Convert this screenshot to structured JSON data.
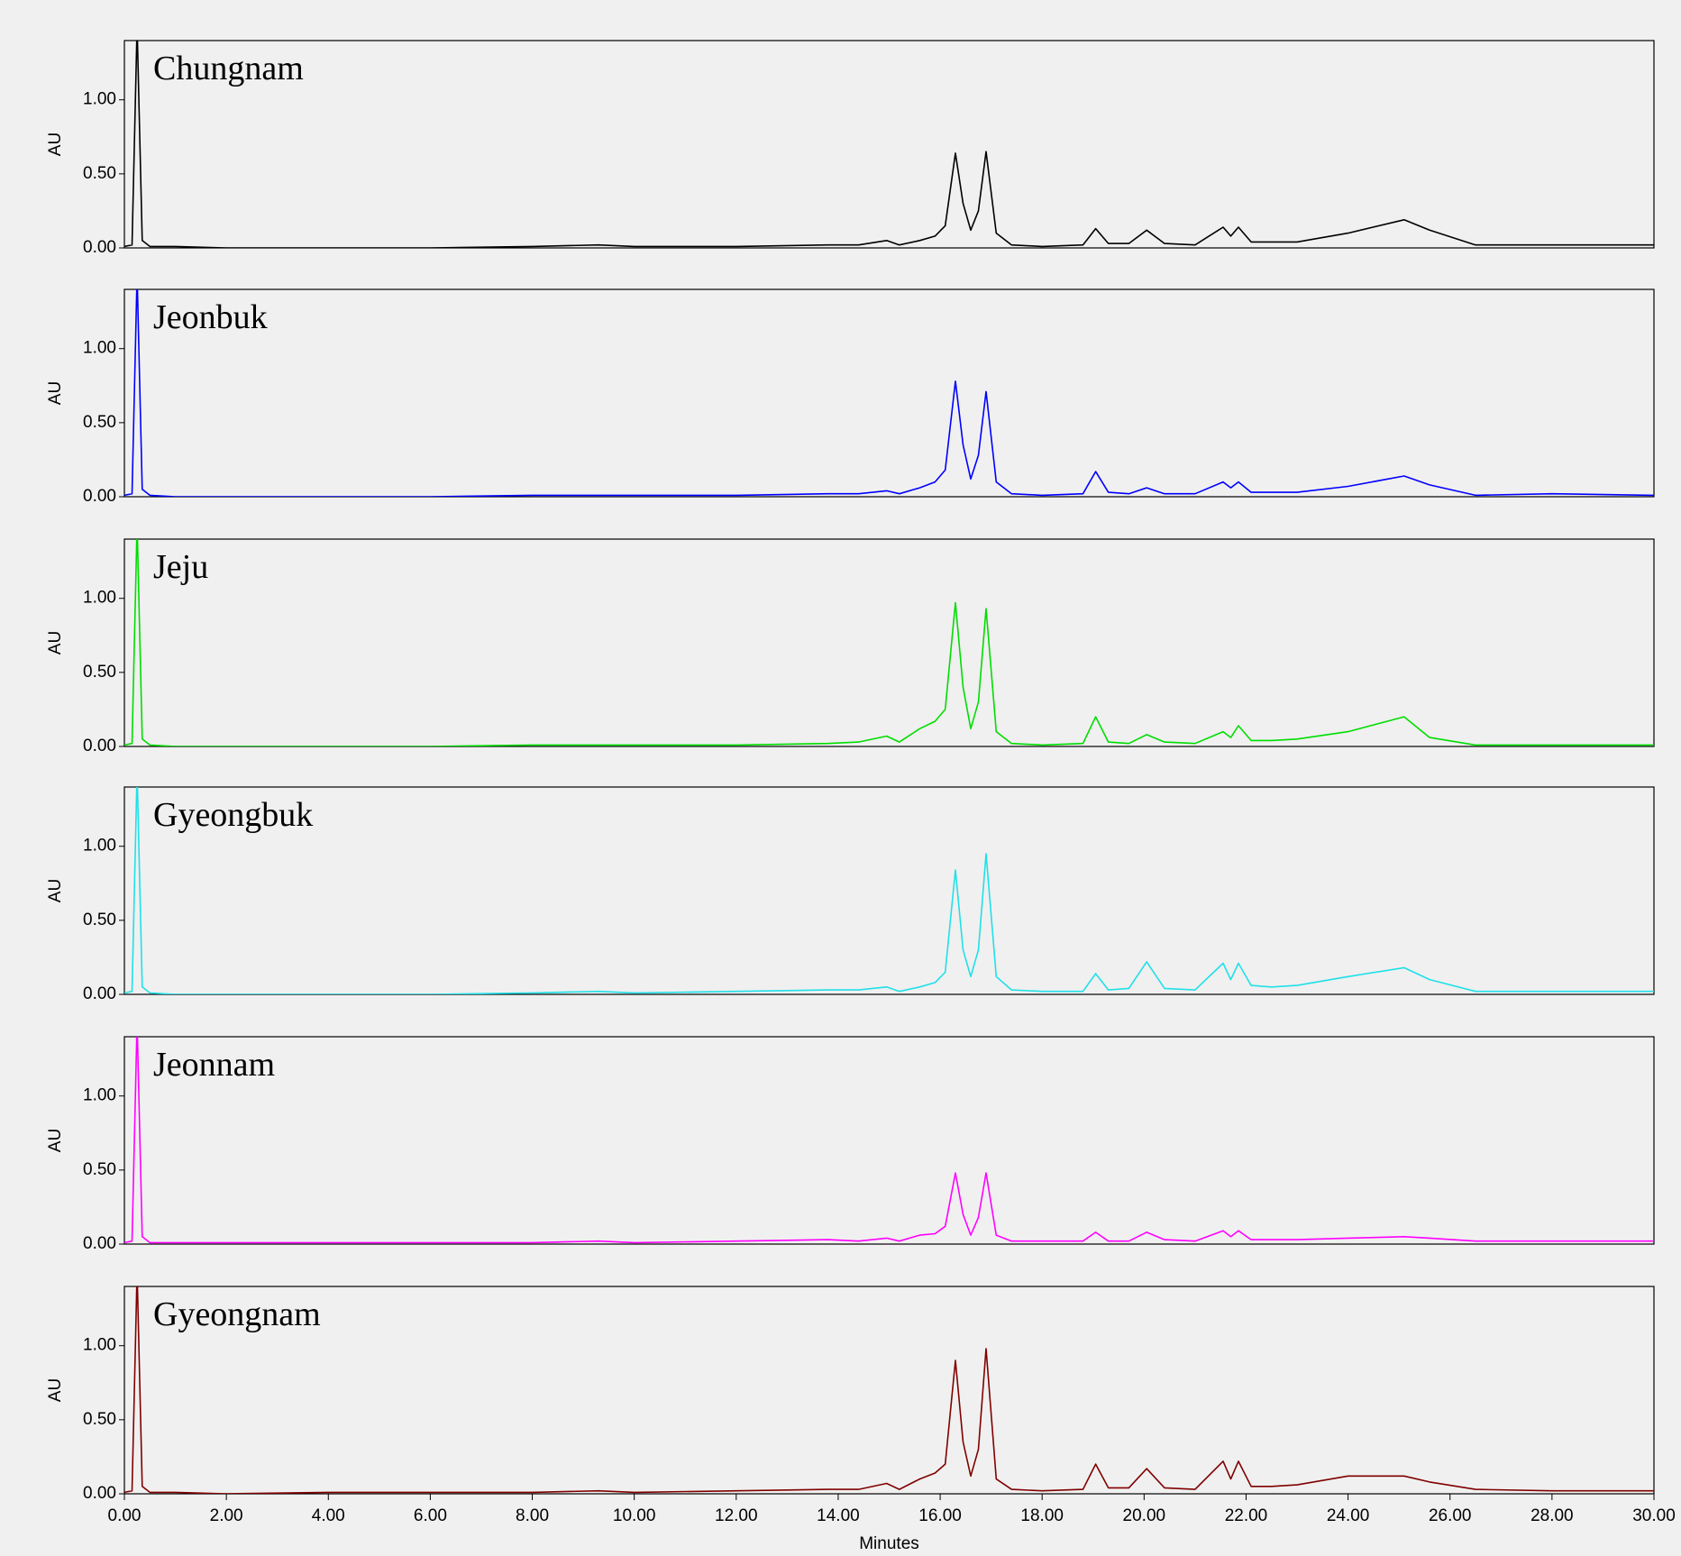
{
  "chart_data": [
    {
      "type": "line",
      "title": "Chungnam",
      "ylabel": "AU",
      "color": "#000000",
      "x": [
        0,
        0.15,
        0.25,
        0.35,
        0.5,
        1,
        2,
        4,
        6,
        8,
        9.3,
        10,
        12,
        13.8,
        14.4,
        14.95,
        15.2,
        15.6,
        15.9,
        16.1,
        16.3,
        16.45,
        16.6,
        16.75,
        16.9,
        17.1,
        17.4,
        18,
        18.8,
        19.05,
        19.3,
        19.7,
        20.05,
        20.4,
        21,
        21.55,
        21.7,
        21.85,
        22.1,
        22.5,
        23,
        24,
        25.1,
        25.6,
        26.5,
        28,
        30
      ],
      "values": [
        0.01,
        0.02,
        1.5,
        0.05,
        0.01,
        0.01,
        0,
        0,
        0,
        0.01,
        0.02,
        0.01,
        0.01,
        0.02,
        0.02,
        0.05,
        0.02,
        0.05,
        0.08,
        0.15,
        0.64,
        0.3,
        0.12,
        0.25,
        0.65,
        0.1,
        0.02,
        0.01,
        0.02,
        0.13,
        0.03,
        0.03,
        0.12,
        0.03,
        0.02,
        0.14,
        0.08,
        0.14,
        0.04,
        0.04,
        0.04,
        0.1,
        0.19,
        0.12,
        0.02,
        0.02,
        0.02
      ],
      "xlim": [
        0,
        30
      ],
      "ylim": [
        0,
        1.4
      ],
      "yticks": [
        {
          "value": 0,
          "label": "0.00"
        },
        {
          "value": 0.5,
          "label": "0.50"
        },
        {
          "value": 1,
          "label": "1.00"
        }
      ]
    },
    {
      "type": "line",
      "title": "Jeonbuk",
      "ylabel": "AU",
      "color": "#0000ff",
      "x": [
        0,
        0.15,
        0.25,
        0.35,
        0.5,
        1,
        2,
        4,
        6,
        8,
        9.3,
        10,
        12,
        13.8,
        14.4,
        14.95,
        15.2,
        15.6,
        15.9,
        16.1,
        16.3,
        16.45,
        16.6,
        16.75,
        16.9,
        17.1,
        17.4,
        18,
        18.8,
        19.05,
        19.3,
        19.7,
        20.05,
        20.4,
        21,
        21.55,
        21.7,
        21.85,
        22.1,
        22.5,
        23,
        24,
        25.1,
        25.6,
        26.5,
        28,
        30
      ],
      "values": [
        0.01,
        0.02,
        1.5,
        0.05,
        0.01,
        0,
        0,
        0,
        0,
        0.01,
        0.01,
        0.01,
        0.01,
        0.02,
        0.02,
        0.04,
        0.02,
        0.06,
        0.1,
        0.18,
        0.78,
        0.35,
        0.12,
        0.28,
        0.71,
        0.1,
        0.02,
        0.01,
        0.02,
        0.17,
        0.03,
        0.02,
        0.06,
        0.02,
        0.02,
        0.1,
        0.06,
        0.1,
        0.03,
        0.03,
        0.03,
        0.07,
        0.14,
        0.08,
        0.01,
        0.02,
        0.01
      ],
      "xlim": [
        0,
        30
      ],
      "ylim": [
        0,
        1.4
      ],
      "yticks": [
        {
          "value": 0,
          "label": "0.00"
        },
        {
          "value": 0.5,
          "label": "0.50"
        },
        {
          "value": 1,
          "label": "1.00"
        }
      ]
    },
    {
      "type": "line",
      "title": "Jeju",
      "ylabel": "AU",
      "color": "#00dd00",
      "x": [
        0,
        0.15,
        0.25,
        0.35,
        0.5,
        1,
        2,
        4,
        6,
        8,
        9.3,
        10,
        12,
        13.8,
        14.4,
        14.95,
        15.2,
        15.6,
        15.9,
        16.1,
        16.3,
        16.45,
        16.6,
        16.75,
        16.9,
        17.1,
        17.4,
        18,
        18.8,
        19.05,
        19.3,
        19.7,
        20.05,
        20.4,
        21,
        21.55,
        21.7,
        21.85,
        22.1,
        22.5,
        23,
        24,
        25.1,
        25.6,
        26.5,
        28,
        30
      ],
      "values": [
        0.01,
        0.02,
        1.5,
        0.05,
        0.01,
        0,
        0,
        0,
        0,
        0.01,
        0.01,
        0.01,
        0.01,
        0.02,
        0.03,
        0.07,
        0.03,
        0.12,
        0.17,
        0.25,
        0.97,
        0.4,
        0.12,
        0.3,
        0.93,
        0.1,
        0.02,
        0.01,
        0.02,
        0.2,
        0.03,
        0.02,
        0.08,
        0.03,
        0.02,
        0.1,
        0.06,
        0.14,
        0.04,
        0.04,
        0.05,
        0.1,
        0.2,
        0.06,
        0.01,
        0.01,
        0.01
      ],
      "xlim": [
        0,
        30
      ],
      "ylim": [
        0,
        1.4
      ],
      "yticks": [
        {
          "value": 0,
          "label": "0.00"
        },
        {
          "value": 0.5,
          "label": "0.50"
        },
        {
          "value": 1,
          "label": "1.00"
        }
      ]
    },
    {
      "type": "line",
      "title": "Gyeongbuk",
      "ylabel": "AU",
      "color": "#20e0e8",
      "x": [
        0,
        0.15,
        0.25,
        0.35,
        0.5,
        1,
        2,
        4,
        6,
        8,
        9.3,
        10,
        12,
        13.8,
        14.4,
        14.95,
        15.2,
        15.6,
        15.9,
        16.1,
        16.3,
        16.45,
        16.6,
        16.75,
        16.9,
        17.1,
        17.4,
        18,
        18.8,
        19.05,
        19.3,
        19.7,
        20.05,
        20.4,
        21,
        21.55,
        21.7,
        21.85,
        22.1,
        22.5,
        23,
        24,
        25.1,
        25.6,
        26.5,
        28,
        30
      ],
      "values": [
        0.01,
        0.02,
        1.5,
        0.05,
        0.01,
        0,
        0,
        0,
        0,
        0.01,
        0.02,
        0.01,
        0.02,
        0.03,
        0.03,
        0.05,
        0.02,
        0.05,
        0.08,
        0.15,
        0.84,
        0.3,
        0.12,
        0.3,
        0.95,
        0.12,
        0.03,
        0.02,
        0.02,
        0.14,
        0.03,
        0.04,
        0.22,
        0.04,
        0.03,
        0.21,
        0.1,
        0.21,
        0.06,
        0.05,
        0.06,
        0.12,
        0.18,
        0.1,
        0.02,
        0.02,
        0.02
      ],
      "xlim": [
        0,
        30
      ],
      "ylim": [
        0,
        1.4
      ],
      "yticks": [
        {
          "value": 0,
          "label": "0.00"
        },
        {
          "value": 0.5,
          "label": "0.50"
        },
        {
          "value": 1,
          "label": "1.00"
        }
      ]
    },
    {
      "type": "line",
      "title": "Jeonnam",
      "ylabel": "AU",
      "color": "#ff00ff",
      "x": [
        0,
        0.15,
        0.25,
        0.35,
        0.5,
        1,
        2,
        4,
        6,
        8,
        9.3,
        10,
        12,
        13.8,
        14.4,
        14.95,
        15.2,
        15.6,
        15.9,
        16.1,
        16.3,
        16.45,
        16.6,
        16.75,
        16.9,
        17.1,
        17.4,
        18,
        18.8,
        19.05,
        19.3,
        19.7,
        20.05,
        20.4,
        21,
        21.55,
        21.7,
        21.85,
        22.1,
        22.5,
        23,
        24,
        25.1,
        25.6,
        26.5,
        28,
        30
      ],
      "values": [
        0.01,
        0.02,
        1.5,
        0.05,
        0.01,
        0.01,
        0.01,
        0.01,
        0.01,
        0.01,
        0.02,
        0.01,
        0.02,
        0.03,
        0.02,
        0.04,
        0.02,
        0.06,
        0.07,
        0.12,
        0.48,
        0.2,
        0.06,
        0.18,
        0.48,
        0.06,
        0.02,
        0.02,
        0.02,
        0.08,
        0.02,
        0.02,
        0.08,
        0.03,
        0.02,
        0.09,
        0.05,
        0.09,
        0.03,
        0.03,
        0.03,
        0.04,
        0.05,
        0.04,
        0.02,
        0.02,
        0.02
      ],
      "xlim": [
        0,
        30
      ],
      "ylim": [
        0,
        1.4
      ],
      "yticks": [
        {
          "value": 0,
          "label": "0.00"
        },
        {
          "value": 0.5,
          "label": "0.50"
        },
        {
          "value": 1,
          "label": "1.00"
        }
      ]
    },
    {
      "type": "line",
      "title": "Gyeongnam",
      "ylabel": "AU",
      "color": "#800000",
      "x": [
        0,
        0.15,
        0.25,
        0.35,
        0.5,
        1,
        2,
        4,
        6,
        8,
        9.3,
        10,
        12,
        13.8,
        14.4,
        14.95,
        15.2,
        15.6,
        15.9,
        16.1,
        16.3,
        16.45,
        16.6,
        16.75,
        16.9,
        17.1,
        17.4,
        18,
        18.8,
        19.05,
        19.3,
        19.7,
        20.05,
        20.4,
        21,
        21.55,
        21.7,
        21.85,
        22.1,
        22.5,
        23,
        24,
        25.1,
        25.6,
        26.5,
        28,
        30
      ],
      "values": [
        0.01,
        0.02,
        1.5,
        0.05,
        0.01,
        0.01,
        0,
        0.01,
        0.01,
        0.01,
        0.02,
        0.01,
        0.02,
        0.03,
        0.03,
        0.07,
        0.03,
        0.1,
        0.14,
        0.2,
        0.9,
        0.35,
        0.12,
        0.3,
        0.98,
        0.1,
        0.03,
        0.02,
        0.03,
        0.2,
        0.04,
        0.04,
        0.17,
        0.04,
        0.03,
        0.22,
        0.1,
        0.22,
        0.05,
        0.05,
        0.06,
        0.12,
        0.12,
        0.08,
        0.03,
        0.02,
        0.02
      ],
      "xlim": [
        0,
        30
      ],
      "ylim": [
        0,
        1.4
      ],
      "yticks": [
        {
          "value": 0,
          "label": "0.00"
        },
        {
          "value": 0.5,
          "label": "0.50"
        },
        {
          "value": 1,
          "label": "1.00"
        }
      ],
      "xlabel": "Minutes",
      "xticks": [
        {
          "value": 0,
          "label": "0.00"
        },
        {
          "value": 2,
          "label": "2.00"
        },
        {
          "value": 4,
          "label": "4.00"
        },
        {
          "value": 6,
          "label": "6.00"
        },
        {
          "value": 8,
          "label": "8.00"
        },
        {
          "value": 10,
          "label": "10.00"
        },
        {
          "value": 12,
          "label": "12.00"
        },
        {
          "value": 14,
          "label": "14.00"
        },
        {
          "value": 16,
          "label": "16.00"
        },
        {
          "value": 18,
          "label": "18.00"
        },
        {
          "value": 20,
          "label": "20.00"
        },
        {
          "value": 22,
          "label": "22.00"
        },
        {
          "value": 24,
          "label": "24.00"
        },
        {
          "value": 26,
          "label": "26.00"
        },
        {
          "value": 28,
          "label": "28.00"
        },
        {
          "value": 30,
          "label": "30.00"
        }
      ]
    }
  ]
}
